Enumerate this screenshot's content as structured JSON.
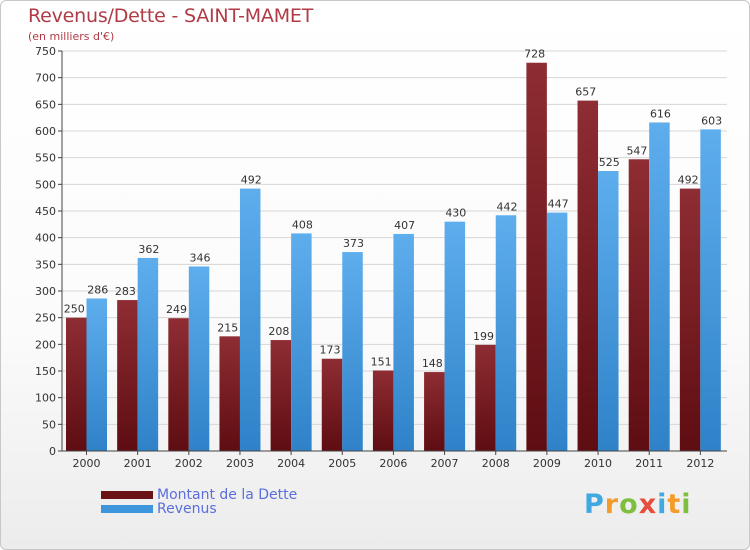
{
  "title": "Revenus/Dette - SAINT-MAMET",
  "subtitle": "(en milliers d'€)",
  "logo": {
    "letters": [
      "P",
      "r",
      "o",
      "x",
      "i",
      "t",
      "i"
    ],
    "colors": [
      "#3fa9e0",
      "#f39c2a",
      "#7fbf3f",
      "#e84c3d",
      "#3fa9e0",
      "#f39c2a",
      "#7fbf3f"
    ]
  },
  "colors": {
    "dette": "#7a1c22",
    "revenus": "#3d96dc",
    "title": "#b03b46",
    "legend_text": "#5a6edc"
  },
  "chart_data": {
    "type": "bar",
    "categories": [
      "2000",
      "2001",
      "2002",
      "2003",
      "2004",
      "2005",
      "2006",
      "2007",
      "2008",
      "2009",
      "2010",
      "2011",
      "2012"
    ],
    "series": [
      {
        "name": "Montant de la Dette",
        "values": [
          250,
          283,
          249,
          215,
          208,
          173,
          151,
          148,
          199,
          728,
          657,
          547,
          492
        ]
      },
      {
        "name": "Revenus",
        "values": [
          286,
          362,
          346,
          492,
          408,
          373,
          407,
          430,
          442,
          447,
          525,
          616,
          603
        ]
      }
    ],
    "title": "Revenus/Dette - SAINT-MAMET",
    "ylabel": "(en milliers d'€)",
    "xlabel": "",
    "ylim": [
      0,
      750
    ],
    "yticks": [
      0,
      50,
      100,
      150,
      200,
      250,
      300,
      350,
      400,
      450,
      500,
      550,
      600,
      650,
      700,
      750
    ],
    "grid": true,
    "legend": "bottom-left"
  }
}
